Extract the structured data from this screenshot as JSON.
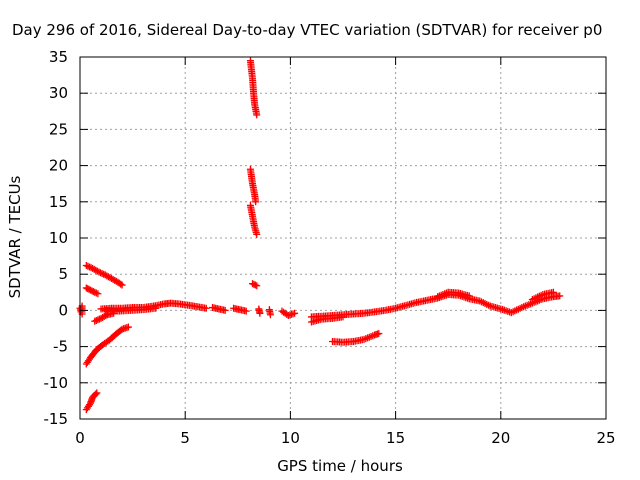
{
  "chart_data": {
    "type": "scatter",
    "title": "Day 296 of 2016, Sidereal Day-to-day VTEC variation (SDTVAR) for receiver p0",
    "xlabel": "GPS time / hours",
    "ylabel": "SDTVAR / TECUs",
    "xlim": [
      0,
      25
    ],
    "ylim": [
      -15,
      35
    ],
    "xticks": [
      "0",
      "5",
      "10",
      "15",
      "20",
      "25"
    ],
    "yticks": [
      "-15",
      "-10",
      "-5",
      "0",
      "5",
      "10",
      "15",
      "20",
      "25",
      "30",
      "35"
    ],
    "grid": true,
    "legend": "none",
    "marker": "plus",
    "color": "#ff0000",
    "series": [
      {
        "segments": [
          [
            [
              0.0,
              0.3
            ],
            [
              0.05,
              -0.2
            ],
            [
              0.1,
              0.6
            ],
            [
              0.1,
              -0.5
            ]
          ],
          [
            [
              0.3,
              6.2
            ],
            [
              0.6,
              5.8
            ],
            [
              0.9,
              5.3
            ],
            [
              1.2,
              4.9
            ],
            [
              1.5,
              4.4
            ],
            [
              1.8,
              3.9
            ],
            [
              2.0,
              3.5
            ]
          ],
          [
            [
              0.3,
              3.1
            ],
            [
              0.5,
              2.8
            ],
            [
              0.7,
              2.5
            ],
            [
              0.85,
              2.3
            ]
          ],
          [
            [
              0.3,
              -7.4
            ],
            [
              0.5,
              -6.5
            ],
            [
              0.8,
              -5.4
            ],
            [
              1.1,
              -4.7
            ],
            [
              1.4,
              -4.1
            ],
            [
              1.7,
              -3.3
            ],
            [
              2.0,
              -2.6
            ],
            [
              2.3,
              -2.3
            ]
          ],
          [
            [
              0.7,
              -1.5
            ],
            [
              1.0,
              -1.1
            ],
            [
              1.3,
              -0.6
            ],
            [
              1.6,
              -0.4
            ]
          ],
          [
            [
              0.3,
              -13.7
            ],
            [
              0.5,
              -12.8
            ],
            [
              0.6,
              -12.0
            ],
            [
              0.8,
              -11.4
            ]
          ],
          [
            [
              1.0,
              0.2
            ],
            [
              1.5,
              0.3
            ],
            [
              2.0,
              0.3
            ],
            [
              2.5,
              0.4
            ],
            [
              3.0,
              0.4
            ],
            [
              3.5,
              0.6
            ],
            [
              4.0,
              0.9
            ],
            [
              4.3,
              1.0
            ],
            [
              4.7,
              0.9
            ],
            [
              5.2,
              0.7
            ],
            [
              5.6,
              0.5
            ],
            [
              6.0,
              0.3
            ]
          ],
          [
            [
              1.2,
              0.0
            ],
            [
              1.8,
              -0.1
            ],
            [
              2.4,
              0.0
            ],
            [
              3.0,
              0.1
            ],
            [
              3.6,
              0.3
            ]
          ],
          [
            [
              6.3,
              0.4
            ],
            [
              6.6,
              0.2
            ],
            [
              6.9,
              0.0
            ]
          ],
          [
            [
              7.3,
              0.3
            ],
            [
              7.6,
              0.1
            ],
            [
              7.9,
              -0.1
            ]
          ],
          [
            [
              8.1,
              34.5
            ],
            [
              8.2,
              32.0
            ],
            [
              8.25,
              30.0
            ],
            [
              8.3,
              28.5
            ],
            [
              8.4,
              27.0
            ]
          ],
          [
            [
              8.1,
              19.5
            ],
            [
              8.2,
              17.5
            ],
            [
              8.3,
              16.0
            ],
            [
              8.35,
              15.0
            ]
          ],
          [
            [
              8.1,
              14.5
            ],
            [
              8.2,
              13.0
            ],
            [
              8.3,
              11.5
            ],
            [
              8.4,
              10.5
            ]
          ],
          [
            [
              8.2,
              3.7
            ],
            [
              8.4,
              3.4
            ]
          ],
          [
            [
              8.5,
              0.2
            ],
            [
              8.55,
              -0.4
            ]
          ],
          [
            [
              9.0,
              0.1
            ],
            [
              9.05,
              -0.6
            ]
          ],
          [
            [
              9.6,
              -0.1
            ],
            [
              9.9,
              -0.7
            ],
            [
              10.2,
              -0.4
            ]
          ],
          [
            [
              11.0,
              -0.9
            ],
            [
              11.5,
              -0.8
            ],
            [
              12.0,
              -0.7
            ],
            [
              12.5,
              -0.6
            ],
            [
              13.0,
              -0.5
            ],
            [
              13.5,
              -0.4
            ],
            [
              14.0,
              -0.2
            ],
            [
              14.5,
              0.0
            ],
            [
              15.0,
              0.3
            ],
            [
              15.5,
              0.7
            ],
            [
              16.0,
              1.1
            ],
            [
              16.5,
              1.4
            ],
            [
              17.0,
              1.7
            ],
            [
              17.5,
              2.2
            ],
            [
              18.0,
              2.1
            ],
            [
              18.5,
              1.6
            ],
            [
              19.0,
              1.3
            ],
            [
              19.5,
              0.6
            ],
            [
              20.0,
              0.2
            ],
            [
              20.5,
              -0.3
            ],
            [
              21.0,
              0.4
            ],
            [
              21.5,
              1.0
            ],
            [
              22.0,
              1.6
            ],
            [
              22.5,
              1.9
            ],
            [
              22.8,
              2.0
            ]
          ],
          [
            [
              11.0,
              -1.6
            ],
            [
              11.5,
              -1.2
            ],
            [
              12.0,
              -1.1
            ],
            [
              12.5,
              -0.9
            ]
          ],
          [
            [
              17.0,
              1.9
            ],
            [
              17.5,
              2.5
            ],
            [
              18.0,
              2.4
            ],
            [
              18.5,
              2.0
            ]
          ],
          [
            [
              21.5,
              1.5
            ],
            [
              22.0,
              2.2
            ],
            [
              22.5,
              2.5
            ]
          ],
          [
            [
              12.0,
              -4.3
            ],
            [
              12.5,
              -4.4
            ],
            [
              13.0,
              -4.3
            ],
            [
              13.5,
              -4.0
            ],
            [
              14.0,
              -3.4
            ],
            [
              14.2,
              -3.2
            ]
          ]
        ]
      }
    ]
  }
}
